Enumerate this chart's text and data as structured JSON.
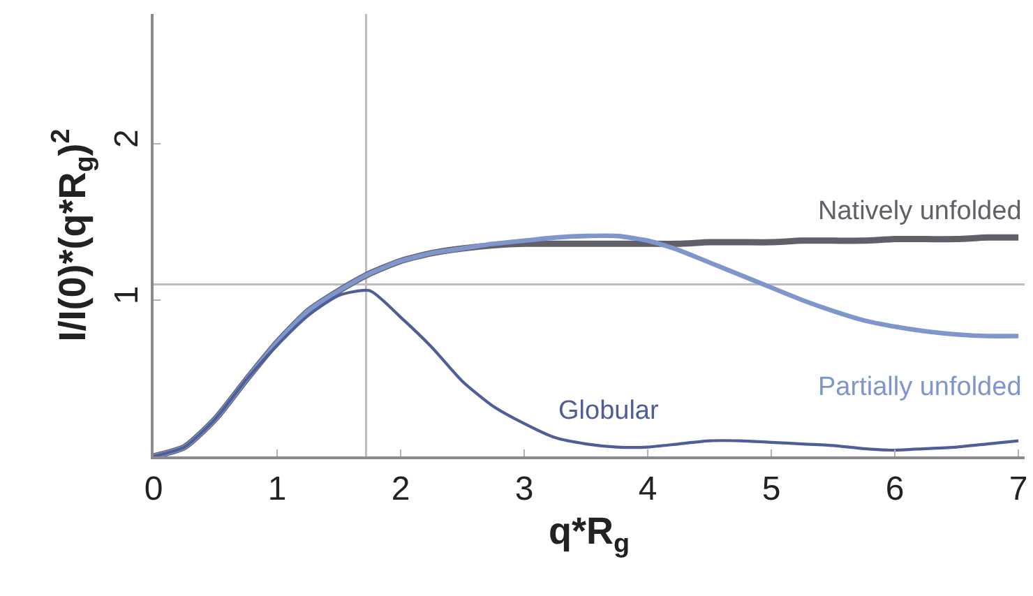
{
  "chart_data": {
    "type": "line",
    "xlabel": "q*R$_{g}$",
    "ylabel": "I/I(0)*(q*R$_{g}$)$^{2}$",
    "x": [
      0,
      0.25,
      0.5,
      0.75,
      1,
      1.25,
      1.5,
      1.75,
      2,
      2.25,
      2.5,
      2.75,
      3,
      3.25,
      3.5,
      3.75,
      4,
      4.25,
      4.5,
      4.75,
      5,
      5.25,
      5.5,
      5.75,
      6,
      6.25,
      6.5,
      6.75,
      7
    ],
    "series": [
      {
        "name": "Natively unfolded",
        "color": "#5f6068",
        "values": [
          0,
          0.06,
          0.24,
          0.49,
          0.73,
          0.93,
          1.06,
          1.17,
          1.25,
          1.3,
          1.33,
          1.35,
          1.36,
          1.36,
          1.36,
          1.36,
          1.36,
          1.36,
          1.37,
          1.37,
          1.37,
          1.38,
          1.38,
          1.38,
          1.39,
          1.39,
          1.39,
          1.4,
          1.4
        ]
      },
      {
        "name": "Partially unfolded",
        "color": "#7f96cc",
        "values": [
          0,
          0.06,
          0.24,
          0.49,
          0.73,
          0.93,
          1.06,
          1.17,
          1.25,
          1.3,
          1.33,
          1.36,
          1.38,
          1.4,
          1.41,
          1.41,
          1.38,
          1.32,
          1.24,
          1.16,
          1.08,
          1.0,
          0.93,
          0.87,
          0.83,
          0.8,
          0.78,
          0.77,
          0.77
        ]
      },
      {
        "name": "Globular",
        "color": "#4f5e98",
        "values": [
          0,
          0.06,
          0.24,
          0.49,
          0.71,
          0.9,
          1.03,
          1.06,
          0.89,
          0.7,
          0.48,
          0.32,
          0.21,
          0.12,
          0.08,
          0.06,
          0.06,
          0.08,
          0.1,
          0.1,
          0.09,
          0.08,
          0.07,
          0.05,
          0.04,
          0.05,
          0.06,
          0.08,
          0.1
        ]
      }
    ],
    "xlim": [
      0,
      7.05
    ],
    "ylim": [
      0,
      2.83
    ],
    "xticks": [
      0,
      1,
      2,
      3,
      4,
      5,
      6,
      7
    ],
    "yticks": [
      1,
      2
    ],
    "ref_lines": [
      {
        "axis": "x",
        "value": 1.72,
        "color": "#bcbcc4"
      },
      {
        "axis": "y",
        "value": 1.1,
        "color": "#bcbcc4"
      }
    ],
    "grid": false,
    "legend": false,
    "marker": "none",
    "line_style": "solid"
  }
}
